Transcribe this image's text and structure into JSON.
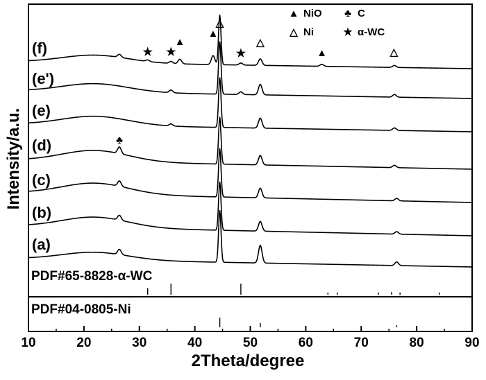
{
  "chart_data": {
    "type": "line",
    "xlabel": "2Theta/degree",
    "ylabel": "Intensity/a.u.",
    "xlim": [
      10,
      90
    ],
    "xticks": [
      10,
      20,
      30,
      40,
      50,
      60,
      70,
      80,
      90
    ],
    "grid": false,
    "legend_position": "top-right",
    "legend": [
      {
        "symbol": "▲",
        "label": "NiO"
      },
      {
        "symbol": "♣",
        "label": "C"
      },
      {
        "symbol": "△",
        "label": "Ni"
      },
      {
        "symbol": "★",
        "label": "α-WC"
      }
    ],
    "series": [
      {
        "name": "(a)",
        "hump": 0.55,
        "peaks": [
          [
            26.4,
            10
          ],
          [
            44.5,
            100
          ],
          [
            51.8,
            34
          ],
          [
            76.4,
            7
          ]
        ]
      },
      {
        "name": "(b)",
        "hump": 0.75,
        "peaks": [
          [
            26.4,
            10
          ],
          [
            44.5,
            100
          ],
          [
            51.8,
            20
          ],
          [
            76.4,
            5
          ]
        ]
      },
      {
        "name": "(c)",
        "hump": 0.8,
        "peaks": [
          [
            26.4,
            11
          ],
          [
            44.5,
            100
          ],
          [
            51.8,
            20
          ],
          [
            76.4,
            5
          ]
        ]
      },
      {
        "name": "(d)",
        "hump": 0.8,
        "peaks": [
          [
            26.4,
            14
          ],
          [
            44.5,
            100
          ],
          [
            51.8,
            20
          ],
          [
            76.0,
            5
          ]
        ]
      },
      {
        "name": "(e)",
        "hump": 0.65,
        "peaks": [
          [
            35.7,
            4
          ],
          [
            44.5,
            100
          ],
          [
            51.8,
            20
          ],
          [
            76.0,
            5
          ]
        ]
      },
      {
        "name": "(e')",
        "hump": 0.6,
        "peaks": [
          [
            35.7,
            5
          ],
          [
            44.5,
            100
          ],
          [
            48.3,
            5
          ],
          [
            51.8,
            20
          ],
          [
            76.0,
            5
          ]
        ]
      },
      {
        "name": "(f)",
        "hump": 0.55,
        "peaks": [
          [
            26.4,
            6
          ],
          [
            31.5,
            3
          ],
          [
            35.7,
            4
          ],
          [
            37.3,
            9
          ],
          [
            43.3,
            18
          ],
          [
            44.5,
            100
          ],
          [
            48.3,
            4
          ],
          [
            51.8,
            13
          ],
          [
            62.9,
            4
          ],
          [
            76.0,
            4
          ]
        ]
      }
    ],
    "phase_markers": [
      {
        "symbol": "★",
        "x": 31.5,
        "series": "(f)"
      },
      {
        "symbol": "★",
        "x": 35.7,
        "series": "(f)"
      },
      {
        "symbol": "▲",
        "x": 37.3,
        "series": "(f)"
      },
      {
        "symbol": "▲",
        "x": 43.3,
        "series": "(f)"
      },
      {
        "symbol": "△",
        "x": 44.5,
        "series": "(f)"
      },
      {
        "symbol": "★",
        "x": 48.3,
        "series": "(f)"
      },
      {
        "symbol": "△",
        "x": 51.8,
        "series": "(f)"
      },
      {
        "symbol": "▲",
        "x": 62.9,
        "series": "(f)"
      },
      {
        "symbol": "△",
        "x": 75.9,
        "series": "(f)"
      },
      {
        "symbol": "♣",
        "x": 26.4,
        "series": "(d)"
      }
    ],
    "reference_patterns": [
      {
        "label": "PDF#65-8828-α-WC",
        "lines": [
          [
            31.5,
            0.6
          ],
          [
            35.7,
            1.0
          ],
          [
            48.3,
            1.0
          ],
          [
            64.0,
            0.2
          ],
          [
            65.7,
            0.2
          ],
          [
            73.1,
            0.2
          ],
          [
            75.5,
            0.25
          ],
          [
            77.0,
            0.2
          ],
          [
            84.1,
            0.2
          ]
        ]
      },
      {
        "label": "PDF#04-0805-Ni",
        "lines": [
          [
            44.5,
            1.0
          ],
          [
            51.8,
            0.45
          ],
          [
            76.4,
            0.2
          ]
        ]
      }
    ]
  }
}
